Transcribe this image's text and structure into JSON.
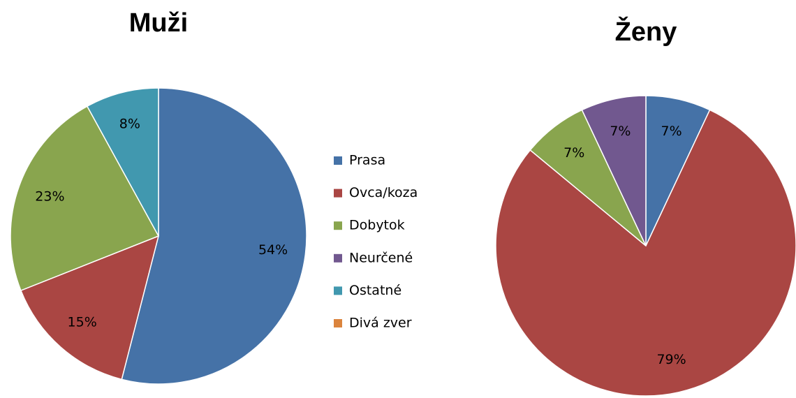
{
  "legend": {
    "categories": [
      "Prasa",
      "Ovca/koza",
      "Dobytok",
      "Neurčené",
      "Ostatné",
      "Divá zver"
    ],
    "colors": [
      "#4572a7",
      "#aa4643",
      "#89a54e",
      "#71588f",
      "#4198af",
      "#db843d"
    ]
  },
  "chart_data": [
    {
      "type": "pie",
      "title": "Muži",
      "values": [
        54,
        15,
        23,
        0,
        8,
        0
      ],
      "value_labels": [
        "54%",
        "15%",
        "23%",
        null,
        "8%",
        null
      ]
    },
    {
      "type": "pie",
      "title": "Ženy",
      "values": [
        7,
        79,
        7,
        7,
        0,
        0
      ],
      "value_labels": [
        "7%",
        "79%",
        "7%",
        "7%",
        null,
        null
      ]
    }
  ]
}
